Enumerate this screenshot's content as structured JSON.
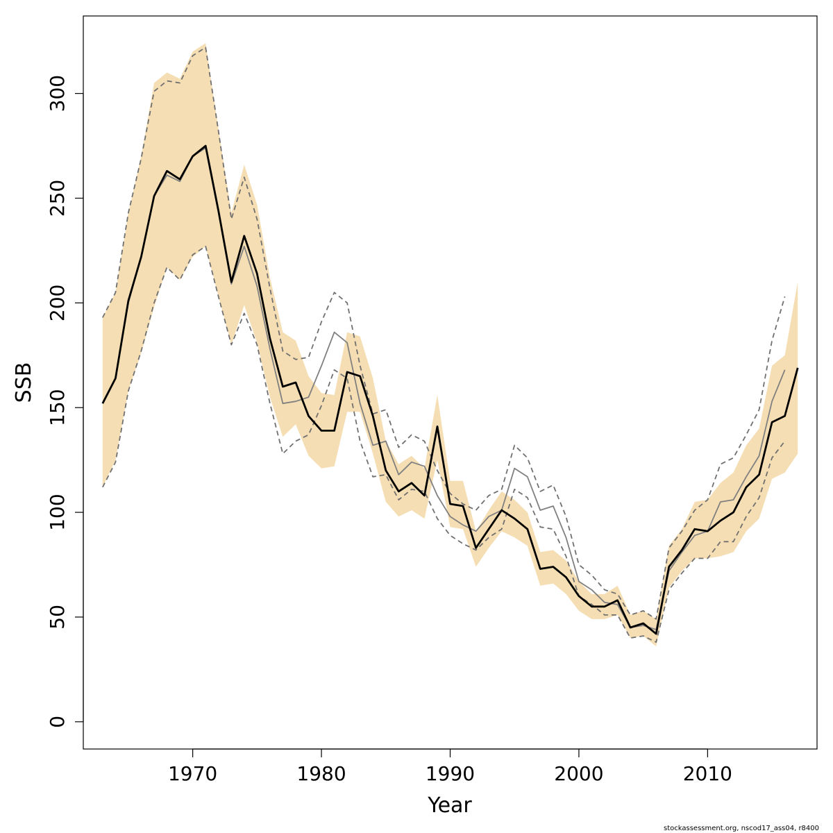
{
  "chart_data": {
    "type": "line",
    "xlabel": "Year",
    "ylabel": "SSB",
    "xlim": [
      1961.5,
      2018.5
    ],
    "ylim": [
      -13,
      337
    ],
    "x_ticks": [
      1970,
      1980,
      1990,
      2000,
      2010
    ],
    "y_ticks": [
      0,
      50,
      100,
      150,
      200,
      250,
      300
    ],
    "grid": false,
    "legend": "none",
    "footnote": "stockassessment.org, nscod17_ass04, r8400",
    "colors": {
      "band": "#f5deb3",
      "current": "#000000",
      "previous": "#808080",
      "previous_ci": "#707070"
    },
    "series": [
      {
        "role": "current_estimate",
        "x": [
          1963,
          1964,
          1965,
          1966,
          1967,
          1968,
          1969,
          1970,
          1971,
          1972,
          1973,
          1974,
          1975,
          1976,
          1977,
          1978,
          1979,
          1980,
          1981,
          1982,
          1983,
          1984,
          1985,
          1986,
          1987,
          1988,
          1989,
          1990,
          1991,
          1992,
          1993,
          1994,
          1995,
          1996,
          1997,
          1998,
          1999,
          2000,
          2001,
          2002,
          2003,
          2004,
          2005,
          2006,
          2007,
          2008,
          2009,
          2010,
          2011,
          2012,
          2013,
          2014,
          2015,
          2016,
          2017
        ],
        "y": [
          152,
          164,
          201,
          222,
          251,
          263,
          259,
          270,
          275,
          244,
          210,
          232,
          214,
          183,
          160,
          162,
          146,
          139,
          139,
          167,
          165,
          146,
          120,
          110,
          114,
          108,
          141,
          104,
          103,
          83,
          92,
          101,
          97,
          92,
          73,
          74,
          69,
          60,
          55,
          55,
          58,
          45,
          47,
          42,
          74,
          82,
          92,
          91,
          96,
          100,
          112,
          118,
          143,
          146,
          169
        ]
      },
      {
        "role": "current_upper_ci",
        "x": [
          1963,
          1964,
          1965,
          1966,
          1967,
          1968,
          1969,
          1970,
          1971,
          1972,
          1973,
          1974,
          1975,
          1976,
          1977,
          1978,
          1979,
          1980,
          1981,
          1982,
          1983,
          1984,
          1985,
          1986,
          1987,
          1988,
          1989,
          1990,
          1991,
          1992,
          1993,
          1994,
          1995,
          1996,
          1997,
          1998,
          1999,
          2000,
          2001,
          2002,
          2003,
          2004,
          2005,
          2006,
          2007,
          2008,
          2009,
          2010,
          2011,
          2012,
          2013,
          2014,
          2015,
          2016,
          2017
        ],
        "y": [
          193,
          205,
          243,
          270,
          305,
          310,
          307,
          320,
          324,
          283,
          243,
          266,
          247,
          212,
          186,
          182,
          165,
          157,
          156,
          186,
          184,
          164,
          134,
          123,
          127,
          121,
          156,
          115,
          115,
          91,
          101,
          110,
          106,
          100,
          81,
          82,
          77,
          67,
          61,
          61,
          65,
          51,
          53,
          49,
          84,
          92,
          105,
          106,
          114,
          119,
          132,
          140,
          170,
          175,
          210
        ]
      },
      {
        "role": "current_lower_ci",
        "x": [
          1963,
          1964,
          1965,
          1966,
          1967,
          1968,
          1969,
          1970,
          1971,
          1972,
          1973,
          1974,
          1975,
          1976,
          1977,
          1978,
          1979,
          1980,
          1981,
          1982,
          1983,
          1984,
          1985,
          1986,
          1987,
          1988,
          1989,
          1990,
          1991,
          1992,
          1993,
          1994,
          1995,
          1996,
          1997,
          1998,
          1999,
          2000,
          2001,
          2002,
          2003,
          2004,
          2005,
          2006,
          2007,
          2008,
          2009,
          2010,
          2011,
          2012,
          2013,
          2014,
          2015,
          2016,
          2017
        ],
        "y": [
          112,
          125,
          158,
          176,
          198,
          217,
          211,
          222,
          227,
          203,
          180,
          199,
          181,
          155,
          136,
          142,
          127,
          121,
          122,
          148,
          148,
          128,
          105,
          98,
          101,
          97,
          125,
          93,
          92,
          74,
          83,
          91,
          88,
          84,
          65,
          66,
          61,
          53,
          49,
          49,
          51,
          40,
          41,
          36,
          64,
          72,
          78,
          78,
          79,
          81,
          91,
          97,
          116,
          119,
          128
        ]
      },
      {
        "role": "previous_estimate",
        "x": [
          1963,
          1964,
          1965,
          1966,
          1967,
          1968,
          1969,
          1970,
          1971,
          1972,
          1973,
          1974,
          1975,
          1976,
          1977,
          1978,
          1979,
          1980,
          1981,
          1982,
          1983,
          1984,
          1985,
          1986,
          1987,
          1988,
          1989,
          1990,
          1991,
          1992,
          1993,
          1994,
          1995,
          1996,
          1997,
          1998,
          1999,
          2000,
          2001,
          2002,
          2003,
          2004,
          2005,
          2006,
          2007,
          2008,
          2009,
          2010,
          2011,
          2012,
          2013,
          2014,
          2015,
          2016
        ],
        "y": [
          152,
          164,
          200,
          222,
          251,
          261,
          258,
          270,
          274,
          243,
          209,
          227,
          208,
          178,
          152,
          153,
          155,
          170,
          186,
          181,
          152,
          132,
          134,
          118,
          124,
          122,
          108,
          98,
          94,
          91,
          98,
          101,
          121,
          117,
          101,
          103,
          88,
          67,
          63,
          57,
          56,
          45,
          46,
          44,
          72,
          81,
          89,
          91,
          105,
          106,
          117,
          127,
          153,
          168
        ]
      },
      {
        "role": "previous_upper_ci",
        "x": [
          1963,
          1964,
          1965,
          1966,
          1967,
          1968,
          1969,
          1970,
          1971,
          1972,
          1973,
          1974,
          1975,
          1976,
          1977,
          1978,
          1979,
          1980,
          1981,
          1982,
          1983,
          1984,
          1985,
          1986,
          1987,
          1988,
          1989,
          1990,
          1991,
          1992,
          1993,
          1994,
          1995,
          1996,
          1997,
          1998,
          1999,
          2000,
          2001,
          2002,
          2003,
          2004,
          2005,
          2006,
          2007,
          2008,
          2009,
          2010,
          2011,
          2012,
          2013,
          2014,
          2015,
          2016
        ],
        "y": [
          193,
          205,
          243,
          269,
          301,
          306,
          305,
          318,
          322,
          282,
          240,
          260,
          240,
          207,
          177,
          173,
          174,
          191,
          205,
          200,
          170,
          147,
          149,
          131,
          137,
          134,
          120,
          109,
          104,
          101,
          108,
          111,
          132,
          126,
          110,
          113,
          98,
          75,
          70,
          63,
          61,
          51,
          53,
          49,
          83,
          91,
          101,
          106,
          123,
          126,
          137,
          149,
          182,
          203
        ]
      },
      {
        "role": "previous_lower_ci",
        "x": [
          1963,
          1964,
          1965,
          1966,
          1967,
          1968,
          1969,
          1970,
          1971,
          1972,
          1973,
          1974,
          1975,
          1976,
          1977,
          1978,
          1979,
          1980,
          1981,
          1982,
          1983,
          1984,
          1985,
          1986,
          1987,
          1988,
          1989,
          1990,
          1991,
          1992,
          1993,
          1994,
          1995,
          1996,
          1997,
          1998,
          1999,
          2000,
          2001,
          2002,
          2003,
          2004,
          2005,
          2006,
          2007,
          2008,
          2009,
          2010,
          2011,
          2012,
          2013,
          2014,
          2015,
          2016
        ],
        "y": [
          112,
          124,
          158,
          177,
          200,
          217,
          211,
          223,
          227,
          203,
          180,
          195,
          180,
          152,
          128,
          134,
          137,
          151,
          168,
          164,
          134,
          117,
          118,
          106,
          111,
          110,
          97,
          89,
          85,
          82,
          88,
          92,
          111,
          107,
          93,
          92,
          79,
          60,
          56,
          51,
          51,
          40,
          41,
          38,
          63,
          71,
          78,
          78,
          86,
          86,
          98,
          107,
          126,
          134
        ]
      }
    ]
  }
}
